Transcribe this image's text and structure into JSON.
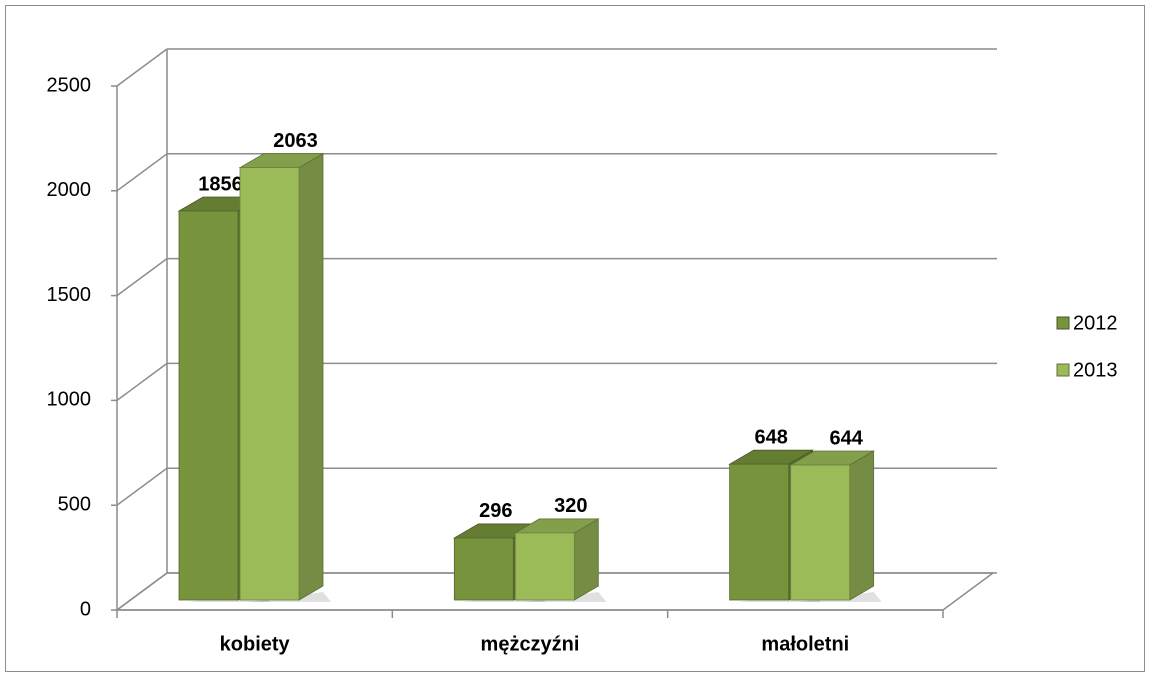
{
  "chart_data": {
    "type": "bar3d",
    "categories": [
      "kobiety",
      "mężczyźni",
      "małoletni"
    ],
    "series": [
      {
        "name": "2012",
        "color": "#77933c",
        "values": [
          1856,
          296,
          648
        ]
      },
      {
        "name": "2013",
        "color": "#9bbb59",
        "values": [
          2063,
          320,
          644
        ]
      }
    ],
    "ylim": [
      0,
      2500
    ],
    "yticks": [
      0,
      500,
      1000,
      1500,
      2000,
      2500
    ],
    "grid": true,
    "legend": "right"
  }
}
